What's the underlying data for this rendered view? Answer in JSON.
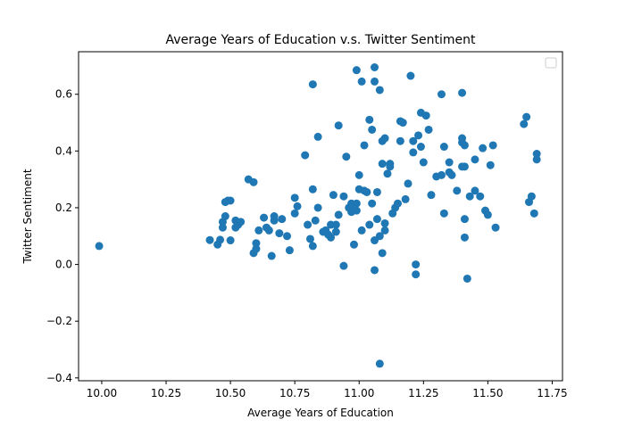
{
  "chart_data": {
    "type": "scatter",
    "title": "Average Years of Education v.s. Twitter Sentiment",
    "xlabel": "Average Years of Education",
    "ylabel": "Twitter Sentiment",
    "xlim": [
      9.91,
      11.79
    ],
    "ylim": [
      -0.41,
      0.75
    ],
    "xticks": [
      10.0,
      10.25,
      10.5,
      10.75,
      11.0,
      11.25,
      11.5,
      11.75
    ],
    "xtick_labels": [
      "10.00",
      "10.25",
      "10.50",
      "10.75",
      "11.00",
      "11.25",
      "11.50",
      "11.75"
    ],
    "yticks": [
      -0.4,
      -0.2,
      0.0,
      0.2,
      0.4,
      0.6
    ],
    "ytick_labels": [
      "−0.4",
      "−0.2",
      "0.0",
      "0.2",
      "0.4",
      "0.6"
    ],
    "grid": false,
    "legend": "top-right",
    "marker_color": "#1f77b4",
    "points": [
      [
        9.99,
        0.065
      ],
      [
        10.42,
        0.086
      ],
      [
        10.45,
        0.07
      ],
      [
        10.46,
        0.087
      ],
      [
        10.47,
        0.15
      ],
      [
        10.47,
        0.13
      ],
      [
        10.48,
        0.17
      ],
      [
        10.48,
        0.22
      ],
      [
        10.49,
        0.225
      ],
      [
        10.5,
        0.225
      ],
      [
        10.5,
        0.085
      ],
      [
        10.52,
        0.155
      ],
      [
        10.52,
        0.13
      ],
      [
        10.53,
        0.14
      ],
      [
        10.54,
        0.15
      ],
      [
        10.57,
        0.3
      ],
      [
        10.59,
        0.29
      ],
      [
        10.59,
        0.04
      ],
      [
        10.6,
        0.055
      ],
      [
        10.6,
        0.075
      ],
      [
        10.61,
        0.12
      ],
      [
        10.63,
        0.165
      ],
      [
        10.64,
        0.13
      ],
      [
        10.65,
        0.12
      ],
      [
        10.66,
        0.03
      ],
      [
        10.67,
        0.155
      ],
      [
        10.67,
        0.17
      ],
      [
        10.69,
        0.11
      ],
      [
        10.7,
        0.16
      ],
      [
        10.72,
        0.1
      ],
      [
        10.73,
        0.05
      ],
      [
        10.75,
        0.235
      ],
      [
        10.75,
        0.18
      ],
      [
        10.76,
        0.205
      ],
      [
        10.79,
        0.385
      ],
      [
        10.8,
        0.14
      ],
      [
        10.81,
        0.09
      ],
      [
        10.82,
        0.265
      ],
      [
        10.82,
        0.635
      ],
      [
        10.82,
        0.065
      ],
      [
        10.83,
        0.155
      ],
      [
        10.84,
        0.2
      ],
      [
        10.84,
        0.45
      ],
      [
        10.86,
        0.115
      ],
      [
        10.87,
        0.12
      ],
      [
        10.88,
        0.105
      ],
      [
        10.89,
        0.14
      ],
      [
        10.89,
        0.095
      ],
      [
        10.9,
        0.245
      ],
      [
        10.91,
        0.115
      ],
      [
        10.91,
        0.14
      ],
      [
        10.92,
        0.175
      ],
      [
        10.92,
        0.49
      ],
      [
        10.94,
        0.24
      ],
      [
        10.94,
        -0.005
      ],
      [
        10.95,
        0.38
      ],
      [
        10.96,
        0.2
      ],
      [
        10.97,
        0.21
      ],
      [
        10.97,
        0.215
      ],
      [
        10.97,
        0.185
      ],
      [
        10.98,
        0.07
      ],
      [
        10.99,
        0.685
      ],
      [
        10.99,
        0.215
      ],
      [
        10.99,
        0.19
      ],
      [
        11.0,
        0.265
      ],
      [
        11.0,
        0.315
      ],
      [
        11.01,
        0.12
      ],
      [
        11.01,
        0.645
      ],
      [
        11.02,
        0.42
      ],
      [
        11.02,
        0.26
      ],
      [
        11.03,
        0.255
      ],
      [
        11.04,
        0.14
      ],
      [
        11.04,
        0.51
      ],
      [
        11.05,
        0.475
      ],
      [
        11.05,
        0.215
      ],
      [
        11.06,
        0.695
      ],
      [
        11.06,
        0.645
      ],
      [
        11.06,
        -0.02
      ],
      [
        11.06,
        0.085
      ],
      [
        11.07,
        0.255
      ],
      [
        11.07,
        0.16
      ],
      [
        11.08,
        0.615
      ],
      [
        11.08,
        0.1
      ],
      [
        11.08,
        -0.35
      ],
      [
        11.09,
        0.04
      ],
      [
        11.09,
        0.435
      ],
      [
        11.09,
        0.355
      ],
      [
        11.1,
        0.445
      ],
      [
        11.1,
        0.145
      ],
      [
        11.1,
        0.12
      ],
      [
        11.11,
        0.32
      ],
      [
        11.12,
        0.355
      ],
      [
        11.12,
        0.345
      ],
      [
        11.13,
        0.18
      ],
      [
        11.14,
        0.2
      ],
      [
        11.15,
        0.215
      ],
      [
        11.16,
        0.505
      ],
      [
        11.16,
        0.435
      ],
      [
        11.17,
        0.5
      ],
      [
        11.18,
        0.23
      ],
      [
        11.19,
        0.285
      ],
      [
        11.2,
        0.665
      ],
      [
        11.21,
        0.435
      ],
      [
        11.21,
        0.395
      ],
      [
        11.22,
        0.0
      ],
      [
        11.22,
        -0.035
      ],
      [
        11.23,
        0.455
      ],
      [
        11.24,
        0.535
      ],
      [
        11.24,
        0.415
      ],
      [
        11.25,
        0.36
      ],
      [
        11.26,
        0.525
      ],
      [
        11.27,
        0.475
      ],
      [
        11.28,
        0.245
      ],
      [
        11.3,
        0.31
      ],
      [
        11.32,
        0.6
      ],
      [
        11.32,
        0.315
      ],
      [
        11.33,
        0.415
      ],
      [
        11.33,
        0.18
      ],
      [
        11.35,
        0.325
      ],
      [
        11.35,
        0.36
      ],
      [
        11.36,
        0.315
      ],
      [
        11.38,
        0.26
      ],
      [
        11.4,
        0.605
      ],
      [
        11.4,
        0.445
      ],
      [
        11.4,
        0.43
      ],
      [
        11.4,
        0.345
      ],
      [
        11.41,
        0.42
      ],
      [
        11.41,
        0.345
      ],
      [
        11.41,
        0.16
      ],
      [
        11.41,
        0.095
      ],
      [
        11.42,
        -0.05
      ],
      [
        11.43,
        0.24
      ],
      [
        11.45,
        0.37
      ],
      [
        11.45,
        0.26
      ],
      [
        11.47,
        0.24
      ],
      [
        11.48,
        0.41
      ],
      [
        11.49,
        0.19
      ],
      [
        11.5,
        0.175
      ],
      [
        11.51,
        0.35
      ],
      [
        11.52,
        0.42
      ],
      [
        11.53,
        0.13
      ],
      [
        11.64,
        0.495
      ],
      [
        11.65,
        0.52
      ],
      [
        11.66,
        0.22
      ],
      [
        11.67,
        0.24
      ],
      [
        11.68,
        0.18
      ],
      [
        11.69,
        0.39
      ],
      [
        11.69,
        0.37
      ]
    ]
  }
}
